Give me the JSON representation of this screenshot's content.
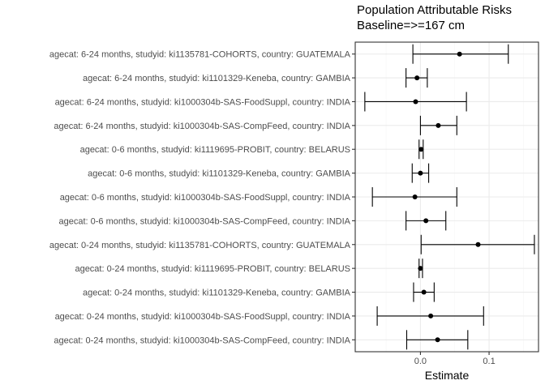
{
  "chart_data": {
    "type": "scatter",
    "title": "Population Attributable Risks",
    "subtitle": "Baseline=>=167 cm",
    "xlabel": "Estimate",
    "ylabel": "",
    "xlim": [
      -0.095,
      0.172
    ],
    "xticks": [
      0.0,
      0.1
    ],
    "xtick_labels": [
      "0.0",
      "0.1"
    ],
    "grid": true,
    "legend": "none",
    "colors": {
      "point": "#000000",
      "panel_border": "#333333",
      "grid_major": "#ebebeb",
      "grid_minor": "#f5f5f5",
      "axis_text": "#4d4d4d"
    },
    "rows": [
      {
        "label": "agecat: 6-24 months, studyid: ki1135781-COHORTS, country: GUATEMALA",
        "estimate": 0.057,
        "lower": -0.011,
        "upper": 0.128
      },
      {
        "label": "agecat: 6-24 months, studyid: ki1101329-Keneba, country: GAMBIA",
        "estimate": -0.005,
        "lower": -0.021,
        "upper": 0.01
      },
      {
        "label": "agecat: 6-24 months, studyid: ki1000304b-SAS-FoodSuppl, country: INDIA",
        "estimate": -0.007,
        "lower": -0.081,
        "upper": 0.067
      },
      {
        "label": "agecat: 6-24 months, studyid: ki1000304b-SAS-CompFeed, country: INDIA",
        "estimate": 0.026,
        "lower": 0.0,
        "upper": 0.053
      },
      {
        "label": "agecat: 0-6 months, studyid: ki1119695-PROBIT, country: BELARUS",
        "estimate": 0.001,
        "lower": -0.002,
        "upper": 0.004
      },
      {
        "label": "agecat: 0-6 months, studyid: ki1101329-Keneba, country: GAMBIA",
        "estimate": 0.0,
        "lower": -0.012,
        "upper": 0.012
      },
      {
        "label": "agecat: 0-6 months, studyid: ki1000304b-SAS-FoodSuppl, country: INDIA",
        "estimate": -0.008,
        "lower": -0.07,
        "upper": 0.053
      },
      {
        "label": "agecat: 0-6 months, studyid: ki1000304b-SAS-CompFeed, country: INDIA",
        "estimate": 0.008,
        "lower": -0.021,
        "upper": 0.037
      },
      {
        "label": "agecat: 0-24 months, studyid: ki1135781-COHORTS, country: GUATEMALA",
        "estimate": 0.084,
        "lower": 0.001,
        "upper": 0.166
      },
      {
        "label": "agecat: 0-24 months, studyid: ki1119695-PROBIT, country: BELARUS",
        "estimate": 0.0,
        "lower": -0.002,
        "upper": 0.003
      },
      {
        "label": "agecat: 0-24 months, studyid: ki1101329-Keneba, country: GAMBIA",
        "estimate": 0.005,
        "lower": -0.01,
        "upper": 0.02
      },
      {
        "label": "agecat: 0-24 months, studyid: ki1000304b-SAS-FoodSuppl, country: INDIA",
        "estimate": 0.015,
        "lower": -0.063,
        "upper": 0.092
      },
      {
        "label": "agecat: 0-24 months, studyid: ki1000304b-SAS-CompFeed, country: INDIA",
        "estimate": 0.025,
        "lower": -0.02,
        "upper": 0.069
      }
    ]
  }
}
